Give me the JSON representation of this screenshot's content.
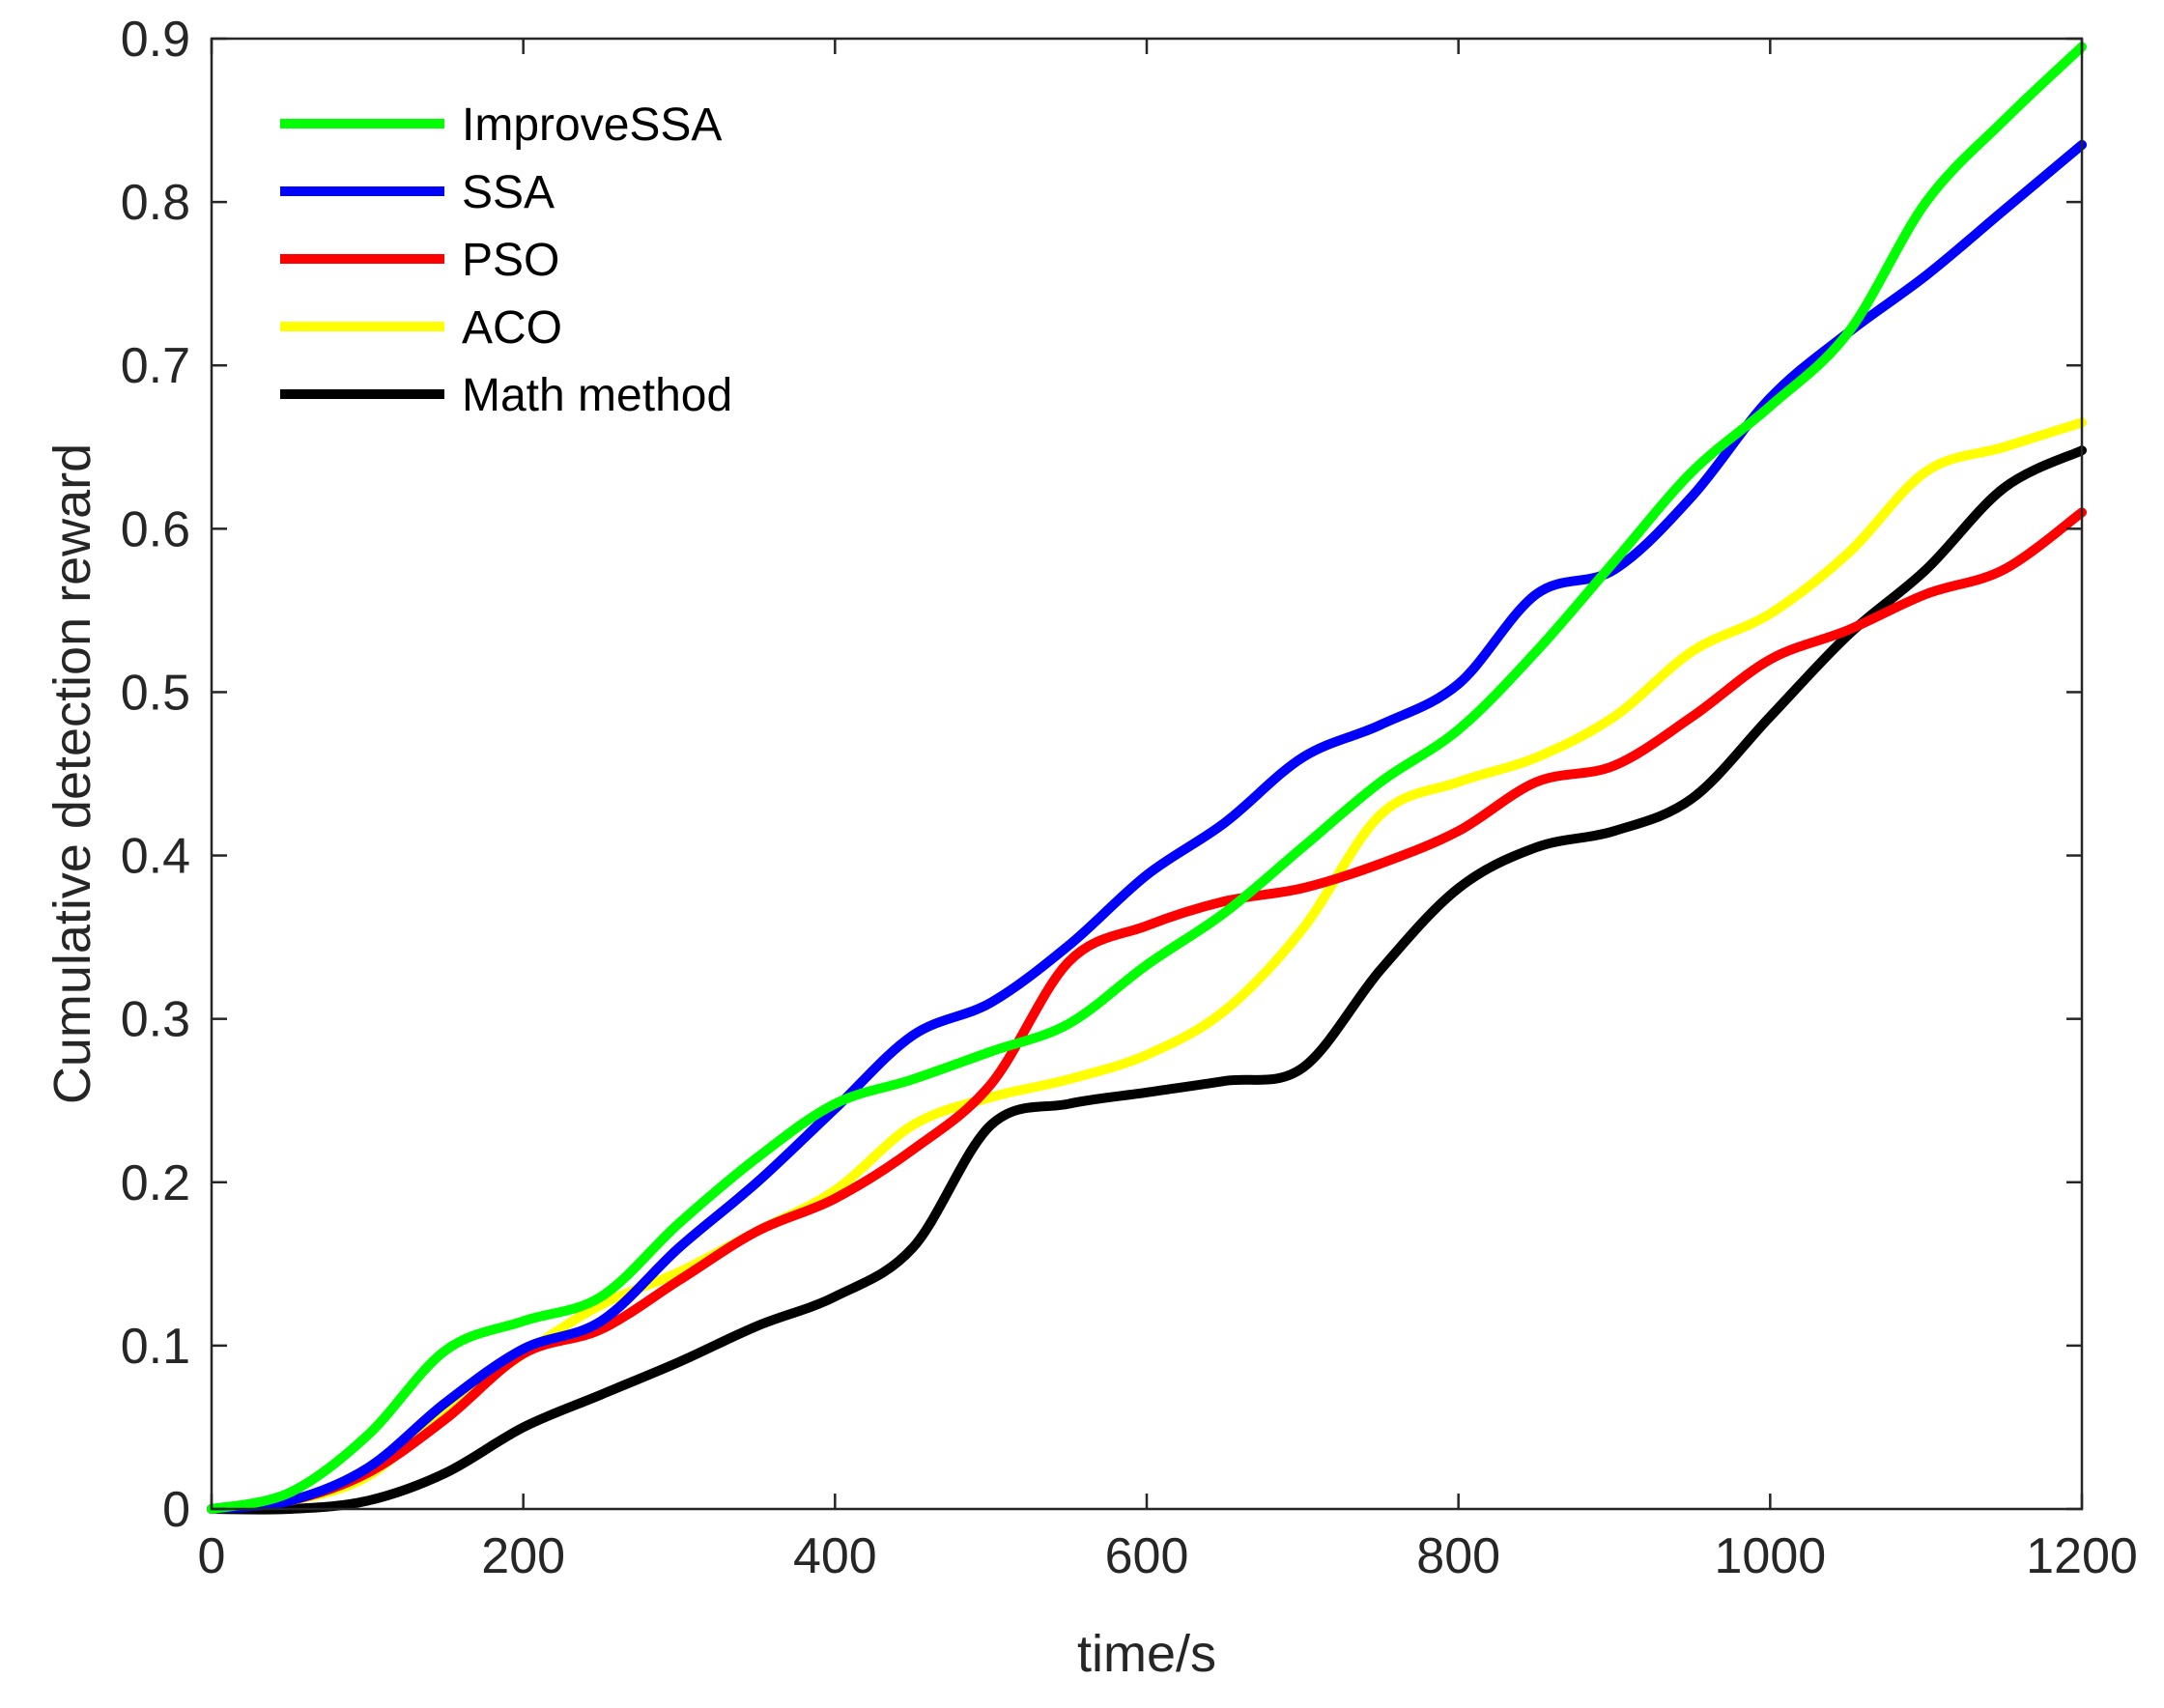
{
  "chart_data": {
    "type": "line",
    "title": "",
    "xlabel": "time/s",
    "ylabel": "Cumulative detection reward",
    "xlim": [
      0,
      1200
    ],
    "ylim": [
      0,
      0.9
    ],
    "xticks": [
      0,
      200,
      400,
      600,
      800,
      1000,
      1200
    ],
    "xtick_labels": [
      "0",
      "200",
      "400",
      "600",
      "800",
      "1000",
      "1200"
    ],
    "yticks": [
      0,
      0.1,
      0.2,
      0.3,
      0.4,
      0.5,
      0.6,
      0.7,
      0.8,
      0.9
    ],
    "ytick_labels": [
      "0",
      "0.1",
      "0.2",
      "0.3",
      "0.4",
      "0.5",
      "0.6",
      "0.7",
      "0.8",
      "0.9"
    ],
    "grid": false,
    "legend_position": "top-left",
    "x": [
      0,
      50,
      100,
      150,
      200,
      250,
      300,
      350,
      400,
      450,
      500,
      550,
      600,
      650,
      700,
      750,
      800,
      850,
      900,
      950,
      1000,
      1050,
      1100,
      1150,
      1200
    ],
    "series": [
      {
        "name": "ImproveSSA",
        "color": "#00ff00",
        "values": [
          0,
          0.01,
          0.045,
          0.097,
          0.115,
          0.13,
          0.175,
          0.215,
          0.248,
          0.263,
          0.28,
          0.297,
          0.333,
          0.365,
          0.405,
          0.445,
          0.477,
          0.525,
          0.58,
          0.635,
          0.675,
          0.72,
          0.8,
          0.85,
          0.895
        ]
      },
      {
        "name": "SSA",
        "color": "#0000ff",
        "values": [
          0,
          0.005,
          0.025,
          0.065,
          0.098,
          0.115,
          0.16,
          0.2,
          0.245,
          0.29,
          0.31,
          0.345,
          0.388,
          0.42,
          0.46,
          0.48,
          0.505,
          0.56,
          0.575,
          0.62,
          0.68,
          0.72,
          0.755,
          0.795,
          0.835
        ]
      },
      {
        "name": "PSO",
        "color": "#ff0000",
        "values": [
          0,
          0.005,
          0.022,
          0.055,
          0.095,
          0.11,
          0.14,
          0.17,
          0.19,
          0.22,
          0.26,
          0.335,
          0.357,
          0.372,
          0.38,
          0.395,
          0.415,
          0.445,
          0.455,
          0.485,
          0.52,
          0.538,
          0.56,
          0.575,
          0.61
        ]
      },
      {
        "name": "ACO",
        "color": "#ffff00",
        "values": [
          0,
          0.005,
          0.02,
          0.06,
          0.095,
          0.125,
          0.145,
          0.17,
          0.195,
          0.235,
          0.252,
          0.263,
          0.278,
          0.305,
          0.355,
          0.425,
          0.445,
          0.46,
          0.485,
          0.525,
          0.548,
          0.585,
          0.635,
          0.65,
          0.665
        ]
      },
      {
        "name": "Math method",
        "color": "#000000",
        "values": [
          0,
          0,
          0.005,
          0.022,
          0.05,
          0.07,
          0.09,
          0.112,
          0.13,
          0.16,
          0.235,
          0.248,
          0.255,
          0.262,
          0.27,
          0.33,
          0.38,
          0.405,
          0.415,
          0.435,
          0.485,
          0.535,
          0.575,
          0.625,
          0.648
        ]
      }
    ]
  }
}
